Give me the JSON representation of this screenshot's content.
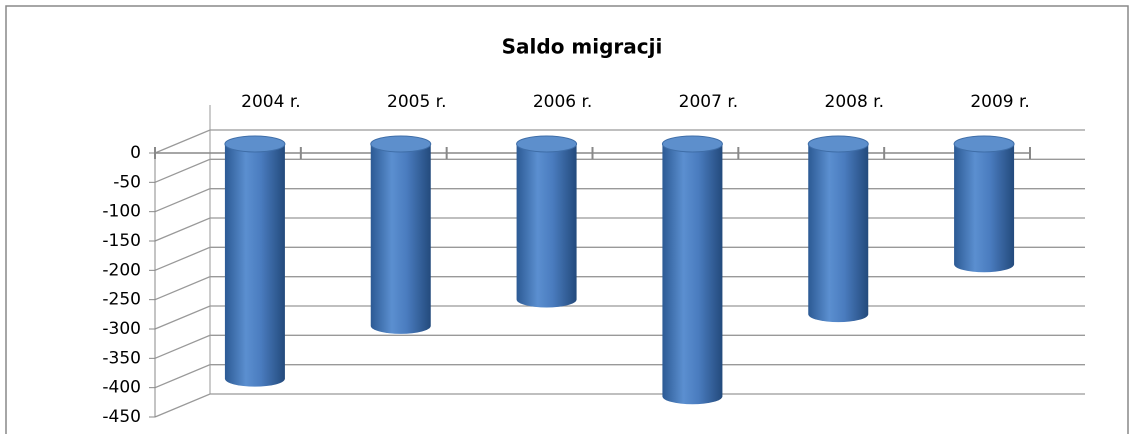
{
  "chart_data": {
    "type": "bar",
    "title": "Saldo migracji",
    "categories": [
      "2004 r.",
      "2005 r.",
      "2006 r.",
      "2007 r.",
      "2008 r.",
      "2009 r."
    ],
    "values": [
      -400,
      -310,
      -265,
      -430,
      -290,
      -205
    ],
    "color": "#4f81bd",
    "ylim": [
      -450,
      0
    ],
    "yticks": [
      0,
      -50,
      -100,
      -150,
      -200,
      -250,
      -300,
      -350,
      -400,
      -450
    ],
    "grid": true
  }
}
